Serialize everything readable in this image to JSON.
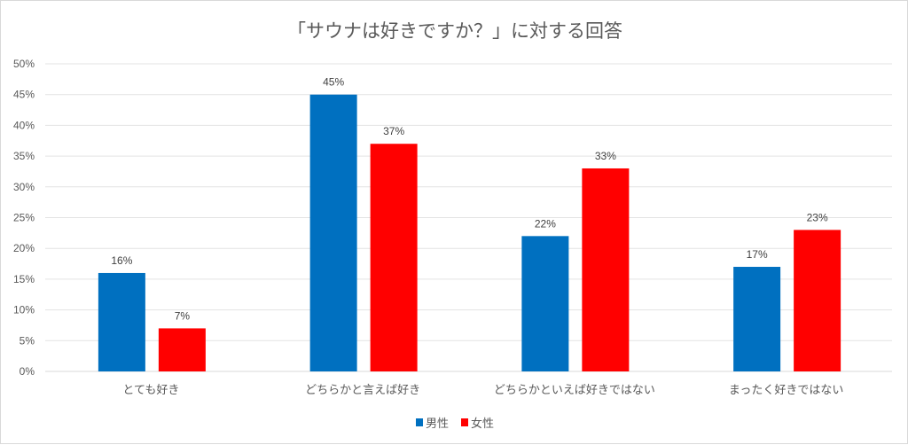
{
  "chart_data": {
    "type": "bar",
    "title": "「サウナは好きですか？」に対する回答",
    "categories": [
      "とても好き",
      "どちらかと言えば好き",
      "どちらかといえば好きではない",
      "まったく好きではない"
    ],
    "series": [
      {
        "name": "男性",
        "color": "#0070c0",
        "values": [
          16,
          45,
          22,
          17
        ]
      },
      {
        "name": "女性",
        "color": "#ff0000",
        "values": [
          7,
          37,
          33,
          23
        ]
      }
    ],
    "ylim": [
      0,
      50
    ],
    "yticks": [
      0,
      5,
      10,
      15,
      20,
      25,
      30,
      35,
      40,
      45,
      50
    ],
    "ytick_suffix": "%",
    "data_label_suffix": "%",
    "xlabel": "",
    "ylabel": "",
    "grid": true,
    "legend_position": "bottom"
  }
}
